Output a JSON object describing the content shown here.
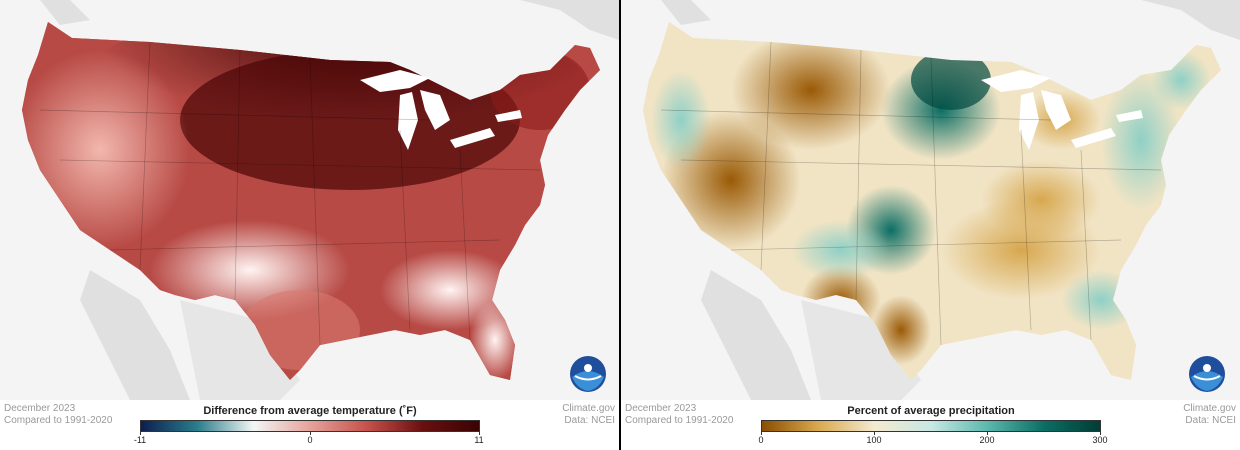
{
  "panels": [
    {
      "id": "temperature",
      "date_line": "December 2023",
      "baseline_line": "Compared to 1991-2020",
      "source_line1": "Climate.gov",
      "source_line2": "Data: NCEI",
      "legend_title": "Difference from average temperature (˚F)",
      "legend_ticks": [
        "-11",
        "0",
        "11"
      ],
      "legend_range": [
        -11,
        11
      ],
      "colors": [
        "#0d1e4f",
        "#2a7d8c",
        "#f2f6f5",
        "#e6a29b",
        "#c6524d",
        "#6a0f0f",
        "#3a0303"
      ]
    },
    {
      "id": "precipitation",
      "date_line": "December 2023",
      "baseline_line": "Compared to 1991-2020",
      "source_line1": "Climate.gov",
      "source_line2": "Data: NCEI",
      "legend_title": "Percent of average precipitation",
      "legend_ticks": [
        "0",
        "100",
        "200",
        "300"
      ],
      "legend_range": [
        0,
        300
      ],
      "colors": [
        "#8a4e00",
        "#d9a94f",
        "#f4ead0",
        "#c8e8e3",
        "#5cb8ae",
        "#0b6e64",
        "#013d35"
      ]
    }
  ],
  "logo_icon": "noaa-logo-icon"
}
